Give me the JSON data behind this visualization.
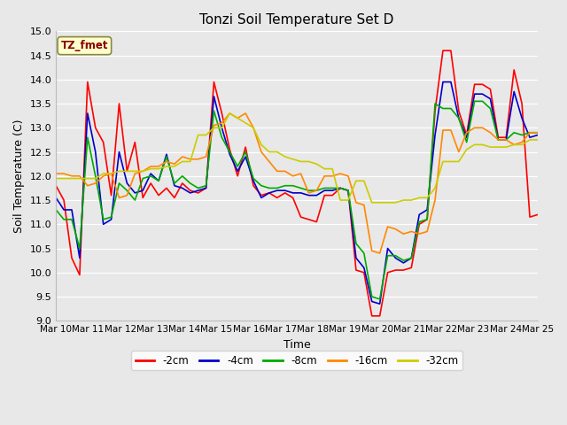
{
  "title": "Tonzi Soil Temperature Set D",
  "xlabel": "Time",
  "ylabel": "Soil Temperature (C)",
  "ylim": [
    9.0,
    15.0
  ],
  "yticks": [
    9.0,
    9.5,
    10.0,
    10.5,
    11.0,
    11.5,
    12.0,
    12.5,
    13.0,
    13.5,
    14.0,
    14.5,
    15.0
  ],
  "x_labels": [
    "Mar 10",
    "Mar 11",
    "Mar 12",
    "Mar 13",
    "Mar 14",
    "Mar 15",
    "Mar 16",
    "Mar 17",
    "Mar 18",
    "Mar 19",
    "Mar 20",
    "Mar 21",
    "Mar 22",
    "Mar 23",
    "Mar 24",
    "Mar 25"
  ],
  "n_days": 15,
  "series": {
    "-2cm": [
      11.8,
      11.5,
      10.3,
      9.95,
      13.95,
      13.0,
      12.7,
      11.6,
      13.5,
      12.1,
      12.7,
      11.55,
      11.85,
      11.6,
      11.75,
      11.55,
      11.85,
      11.7,
      11.65,
      11.75,
      13.95,
      13.3,
      12.55,
      12.0,
      12.6,
      11.8,
      11.6,
      11.65,
      11.55,
      11.65,
      11.55,
      11.15,
      11.1,
      11.05,
      11.6,
      11.6,
      11.75,
      11.7,
      10.05,
      10.0,
      9.1,
      9.1,
      10.0,
      10.05,
      10.05,
      10.1,
      11.0,
      11.1,
      13.35,
      14.6,
      14.6,
      13.35,
      12.85,
      13.9,
      13.9,
      13.8,
      12.8,
      12.8,
      14.2,
      13.5,
      11.15,
      11.2
    ],
    "-4cm": [
      11.55,
      11.3,
      11.3,
      10.3,
      13.3,
      12.5,
      11.0,
      11.1,
      12.5,
      11.85,
      11.65,
      11.7,
      12.05,
      11.9,
      12.45,
      11.8,
      11.75,
      11.65,
      11.7,
      11.75,
      13.65,
      13.0,
      12.45,
      12.1,
      12.4,
      11.9,
      11.55,
      11.65,
      11.7,
      11.7,
      11.65,
      11.65,
      11.6,
      11.6,
      11.7,
      11.7,
      11.75,
      11.7,
      10.3,
      10.1,
      9.4,
      9.35,
      10.5,
      10.3,
      10.2,
      10.3,
      11.2,
      11.3,
      12.85,
      13.95,
      13.95,
      13.2,
      12.8,
      13.7,
      13.7,
      13.6,
      12.75,
      12.75,
      13.75,
      13.2,
      12.8,
      12.85
    ],
    "-8cm": [
      11.3,
      11.1,
      11.1,
      10.5,
      12.8,
      12.0,
      11.1,
      11.15,
      11.85,
      11.7,
      11.5,
      11.95,
      12.0,
      11.9,
      12.4,
      11.85,
      12.0,
      11.85,
      11.75,
      11.8,
      13.35,
      12.8,
      12.5,
      12.2,
      12.5,
      11.95,
      11.8,
      11.75,
      11.75,
      11.8,
      11.8,
      11.75,
      11.7,
      11.7,
      11.75,
      11.75,
      11.75,
      11.7,
      10.6,
      10.4,
      9.5,
      9.45,
      10.35,
      10.35,
      10.25,
      10.3,
      11.05,
      11.1,
      13.5,
      13.4,
      13.4,
      13.2,
      12.7,
      13.55,
      13.55,
      13.4,
      12.75,
      12.75,
      12.9,
      12.85,
      12.9,
      12.9
    ],
    "-16cm": [
      12.05,
      12.05,
      12.0,
      12.0,
      11.8,
      11.85,
      12.0,
      12.05,
      11.55,
      11.6,
      12.05,
      12.1,
      12.2,
      12.2,
      12.3,
      12.25,
      12.4,
      12.35,
      12.35,
      12.4,
      13.05,
      13.1,
      13.3,
      13.2,
      13.3,
      13.0,
      12.5,
      12.3,
      12.1,
      12.1,
      12.0,
      12.05,
      11.65,
      11.7,
      12.0,
      12.0,
      12.05,
      12.0,
      11.45,
      11.4,
      10.45,
      10.4,
      10.95,
      10.9,
      10.8,
      10.85,
      10.8,
      10.85,
      11.5,
      12.95,
      12.95,
      12.5,
      12.9,
      13.0,
      13.0,
      12.9,
      12.75,
      12.75,
      12.65,
      12.7,
      12.9,
      12.9
    ],
    "-32cm": [
      11.95,
      11.95,
      11.95,
      11.95,
      11.95,
      11.95,
      12.05,
      12.05,
      12.1,
      12.1,
      12.1,
      12.1,
      12.15,
      12.15,
      12.2,
      12.2,
      12.3,
      12.3,
      12.85,
      12.85,
      13.0,
      13.0,
      13.3,
      13.2,
      13.1,
      13.0,
      12.65,
      12.5,
      12.5,
      12.4,
      12.35,
      12.3,
      12.3,
      12.25,
      12.15,
      12.15,
      11.5,
      11.5,
      11.9,
      11.9,
      11.45,
      11.45,
      11.45,
      11.45,
      11.5,
      11.5,
      11.55,
      11.55,
      11.75,
      12.3,
      12.3,
      12.3,
      12.55,
      12.65,
      12.65,
      12.6,
      12.6,
      12.6,
      12.65,
      12.65,
      12.75,
      12.75
    ]
  },
  "colors": {
    "-2cm": "#ff0000",
    "-4cm": "#0000cc",
    "-8cm": "#00aa00",
    "-16cm": "#ff8800",
    "-32cm": "#cccc00"
  },
  "linewidth": 1.2,
  "bg_color": "#e8e8e8",
  "annotation_text": "TZ_fmet",
  "annotation_color": "#880000",
  "annotation_bg": "#ffffcc",
  "annotation_edge": "#888844"
}
